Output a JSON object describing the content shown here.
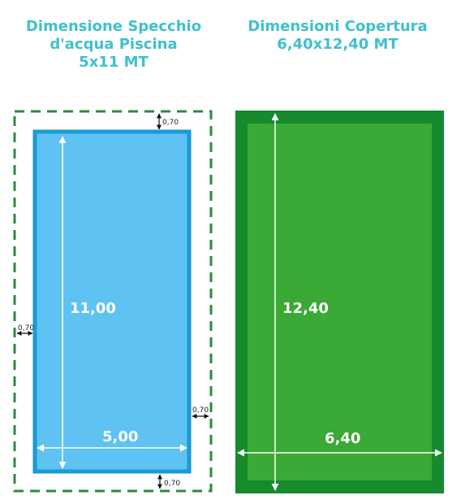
{
  "left": {
    "title_line1": "Dimensione Specchio",
    "title_line2": "d'acqua Piscina",
    "title_line3": "5x11 MT",
    "length_label": "11,00",
    "width_label": "5,00",
    "margin_top": "0,70",
    "margin_left": "0,70",
    "margin_right": "0,70",
    "margin_bottom": "0,70"
  },
  "right": {
    "title_line1": "Dimensioni Copertura",
    "title_line2": "6,40x12,40 MT",
    "length_label": "12,40",
    "width_label": "6,40"
  },
  "colors": {
    "title": "#3fc1cc",
    "pool_fill": "#5ec2f3",
    "pool_border": "#1a9ad6",
    "dashed_border": "#2e8b3a",
    "cover_outer": "#178a2e",
    "cover_inner": "#3aa935"
  }
}
